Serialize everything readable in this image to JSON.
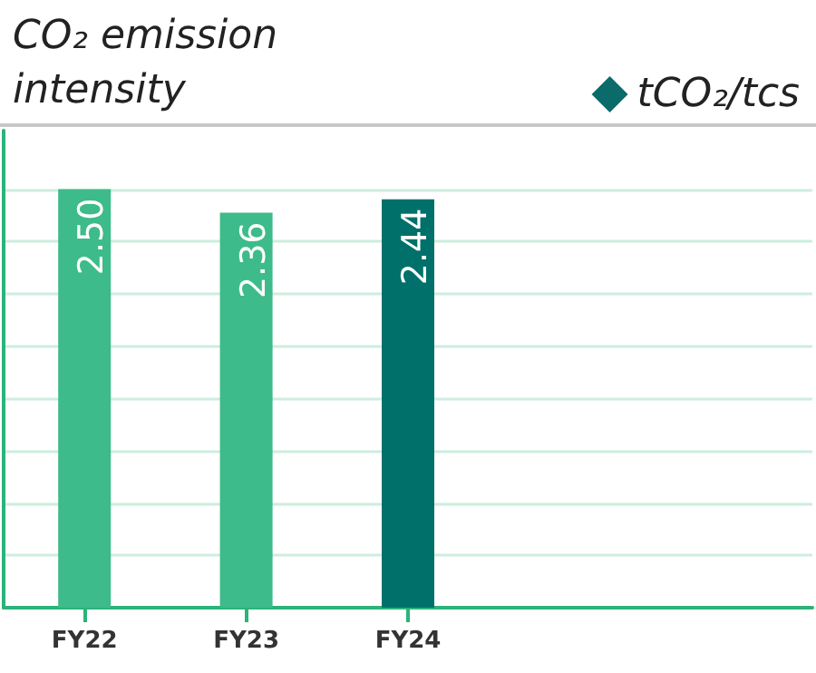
{
  "chart_data": {
    "type": "bar",
    "title": "CO₂ emission intensity",
    "categories": [
      "FY22",
      "FY23",
      "FY24"
    ],
    "series": [
      {
        "name": "tCO₂/tcs",
        "color": "#0a6b6a",
        "colors": [
          "#3dbb8a",
          "#3dbb8a",
          "#00706a"
        ],
        "values": [
          2.5,
          2.36,
          2.44
        ],
        "value_labels": [
          "2.50",
          "2.36",
          "2.44"
        ]
      }
    ],
    "ylim": [
      0,
      2.85
    ],
    "yticks": [
      {
        "value": 0,
        "label": null
      },
      {
        "value": 0.3125,
        "label": null
      },
      {
        "value": 0.625,
        "label": null
      },
      {
        "value": 0.9375,
        "label": null
      },
      {
        "value": 1.25,
        "label": null
      },
      {
        "value": 1.5625,
        "label": null
      },
      {
        "value": 1.875,
        "label": null
      },
      {
        "value": 2.1875,
        "label": null
      },
      {
        "value": 2.5,
        "label": null
      }
    ],
    "grid": "y",
    "legend": "top right",
    "tick_labels": "x"
  }
}
